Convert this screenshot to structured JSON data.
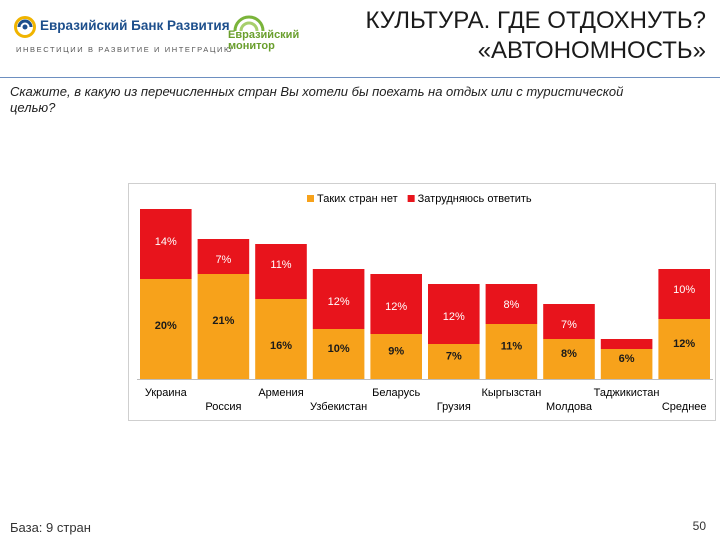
{
  "header": {
    "bank_name": "Евразийский Банк Развития",
    "bank_tagline": "ИНВЕСТИЦИИ В РАЗВИТИЕ И ИНТЕГРАЦИЮ",
    "monitor_line1": "Евразийский",
    "monitor_line2": "монитор",
    "title_line1": "КУЛЬТУРА. ГДЕ ОТДОХНУТЬ?",
    "title_line2": "«АВТОНОМНОСТЬ»"
  },
  "question": "Скажите, в какую из перечисленных стран Вы хотели бы поехать на отдых или с туристической целью?",
  "footer": {
    "base": "База: 9 стран",
    "page_number": "50"
  },
  "colors": {
    "none": "#f7a21b",
    "dont_know": "#e8141c",
    "brand_blue": "#1d4f8c",
    "monitor_green": "#6a9f2d"
  },
  "chart_data": {
    "type": "bar",
    "stacked": true,
    "categories": [
      "Украина",
      "Россия",
      "Армения",
      "Узбекистан",
      "Беларусь",
      "Грузия",
      "Кыргызстан",
      "Молдова",
      "Таджикистан",
      "Среднее"
    ],
    "series": [
      {
        "name": "Таких стран нет",
        "values": [
          20,
          21,
          16,
          10,
          9,
          7,
          11,
          8,
          6,
          12
        ],
        "labels": [
          "20%",
          "21%",
          "16%",
          "10%",
          "9%",
          "7%",
          "11%",
          "8%",
          "6%",
          "12%"
        ]
      },
      {
        "name": "Затрудняюсь ответить",
        "values": [
          14,
          7,
          11,
          12,
          12,
          12,
          8,
          7,
          2,
          10
        ],
        "labels": [
          "14%",
          "7%",
          "11%",
          "12%",
          "12%",
          "12%",
          "8%",
          "7%",
          "2%",
          "10%"
        ]
      }
    ],
    "ylim": [
      0,
      35
    ],
    "legend": "top-center",
    "grid": false
  }
}
